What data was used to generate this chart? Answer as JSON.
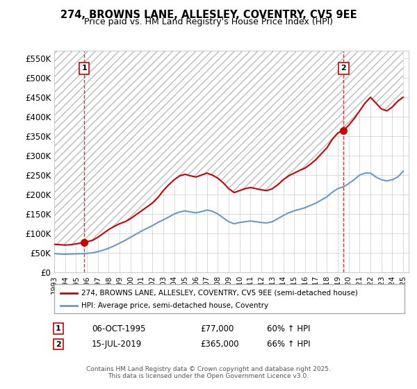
{
  "title": "274, BROWNS LANE, ALLESLEY, COVENTRY, CV5 9EE",
  "subtitle": "Price paid vs. HM Land Registry's House Price Index (HPI)",
  "legend_line1": "274, BROWNS LANE, ALLESLEY, COVENTRY, CV5 9EE (semi-detached house)",
  "legend_line2": "HPI: Average price, semi-detached house, Coventry",
  "annotation1_label": "1",
  "annotation1_date": "06-OCT-1995",
  "annotation1_price": "£77,000",
  "annotation1_hpi": "60% ↑ HPI",
  "annotation1_year": 1995.75,
  "annotation1_value": 77000,
  "annotation2_label": "2",
  "annotation2_date": "15-JUL-2019",
  "annotation2_price": "£365,000",
  "annotation2_hpi": "66% ↑ HPI",
  "annotation2_year": 2019.54,
  "annotation2_value": 365000,
  "footer": "Contains HM Land Registry data © Crown copyright and database right 2025.\nThis data is licensed under the Open Government Licence v3.0.",
  "ylim": [
    0,
    570000
  ],
  "yticks": [
    0,
    50000,
    100000,
    150000,
    200000,
    250000,
    300000,
    350000,
    400000,
    450000,
    500000,
    550000
  ],
  "ytick_labels": [
    "£0",
    "£50K",
    "£100K",
    "£150K",
    "£200K",
    "£250K",
    "£300K",
    "£350K",
    "£400K",
    "£450K",
    "£500K",
    "£550K"
  ],
  "xlim_start": 1993.0,
  "xlim_end": 2025.5,
  "red_color": "#cc0000",
  "blue_color": "#6699cc",
  "hatch_color": "#cccccc",
  "grid_color": "#cccccc",
  "bg_color": "#ffffff",
  "red_line_data_x": [
    1993.0,
    1993.5,
    1994.0,
    1994.5,
    1995.0,
    1995.75,
    1996.5,
    1997.0,
    1997.5,
    1998.0,
    1998.5,
    1999.0,
    1999.5,
    2000.0,
    2000.5,
    2001.0,
    2001.5,
    2002.0,
    2002.5,
    2003.0,
    2003.5,
    2004.0,
    2004.5,
    2005.0,
    2005.5,
    2006.0,
    2006.5,
    2007.0,
    2007.5,
    2008.0,
    2008.5,
    2009.0,
    2009.5,
    2010.0,
    2010.5,
    2011.0,
    2011.5,
    2012.0,
    2012.5,
    2013.0,
    2013.5,
    2014.0,
    2014.5,
    2015.0,
    2015.5,
    2016.0,
    2016.5,
    2017.0,
    2017.5,
    2018.0,
    2018.5,
    2019.0,
    2019.54,
    2020.0,
    2020.5,
    2021.0,
    2021.5,
    2022.0,
    2022.5,
    2023.0,
    2023.5,
    2024.0,
    2024.5,
    2025.0
  ],
  "red_line_data_y": [
    72000,
    71000,
    70000,
    71000,
    73000,
    77000,
    82000,
    90000,
    100000,
    110000,
    118000,
    125000,
    130000,
    138000,
    148000,
    158000,
    168000,
    178000,
    192000,
    210000,
    225000,
    238000,
    248000,
    252000,
    248000,
    245000,
    250000,
    255000,
    250000,
    242000,
    230000,
    215000,
    205000,
    210000,
    215000,
    218000,
    215000,
    212000,
    210000,
    215000,
    225000,
    238000,
    248000,
    255000,
    262000,
    268000,
    278000,
    290000,
    305000,
    320000,
    342000,
    358000,
    365000,
    378000,
    395000,
    415000,
    435000,
    450000,
    435000,
    420000,
    415000,
    425000,
    440000,
    450000
  ],
  "blue_line_data_x": [
    1993.0,
    1993.5,
    1994.0,
    1994.5,
    1995.0,
    1995.75,
    1996.5,
    1997.0,
    1997.5,
    1998.0,
    1998.5,
    1999.0,
    1999.5,
    2000.0,
    2000.5,
    2001.0,
    2001.5,
    2002.0,
    2002.5,
    2003.0,
    2003.5,
    2004.0,
    2004.5,
    2005.0,
    2005.5,
    2006.0,
    2006.5,
    2007.0,
    2007.5,
    2008.0,
    2008.5,
    2009.0,
    2009.5,
    2010.0,
    2010.5,
    2011.0,
    2011.5,
    2012.0,
    2012.5,
    2013.0,
    2013.5,
    2014.0,
    2014.5,
    2015.0,
    2015.5,
    2016.0,
    2016.5,
    2017.0,
    2017.5,
    2018.0,
    2018.5,
    2019.0,
    2019.54,
    2020.0,
    2020.5,
    2021.0,
    2021.5,
    2022.0,
    2022.5,
    2023.0,
    2023.5,
    2024.0,
    2024.5,
    2025.0
  ],
  "blue_line_data_y": [
    48000,
    47000,
    46500,
    47000,
    47500,
    48000,
    50000,
    53000,
    57000,
    62000,
    68000,
    75000,
    82000,
    90000,
    98000,
    106000,
    113000,
    120000,
    128000,
    135000,
    142000,
    150000,
    155000,
    158000,
    155000,
    153000,
    156000,
    160000,
    157000,
    150000,
    140000,
    130000,
    125000,
    128000,
    130000,
    132000,
    130000,
    128000,
    127000,
    130000,
    138000,
    146000,
    153000,
    158000,
    162000,
    166000,
    172000,
    178000,
    186000,
    194000,
    206000,
    215000,
    220000,
    228000,
    238000,
    250000,
    255000,
    255000,
    245000,
    238000,
    235000,
    238000,
    245000,
    260000
  ],
  "xtick_years": [
    1993,
    1994,
    1995,
    1996,
    1997,
    1998,
    1999,
    2000,
    2001,
    2002,
    2003,
    2004,
    2005,
    2006,
    2007,
    2008,
    2009,
    2010,
    2011,
    2012,
    2013,
    2014,
    2015,
    2016,
    2017,
    2018,
    2019,
    2020,
    2021,
    2022,
    2023,
    2024,
    2025
  ]
}
